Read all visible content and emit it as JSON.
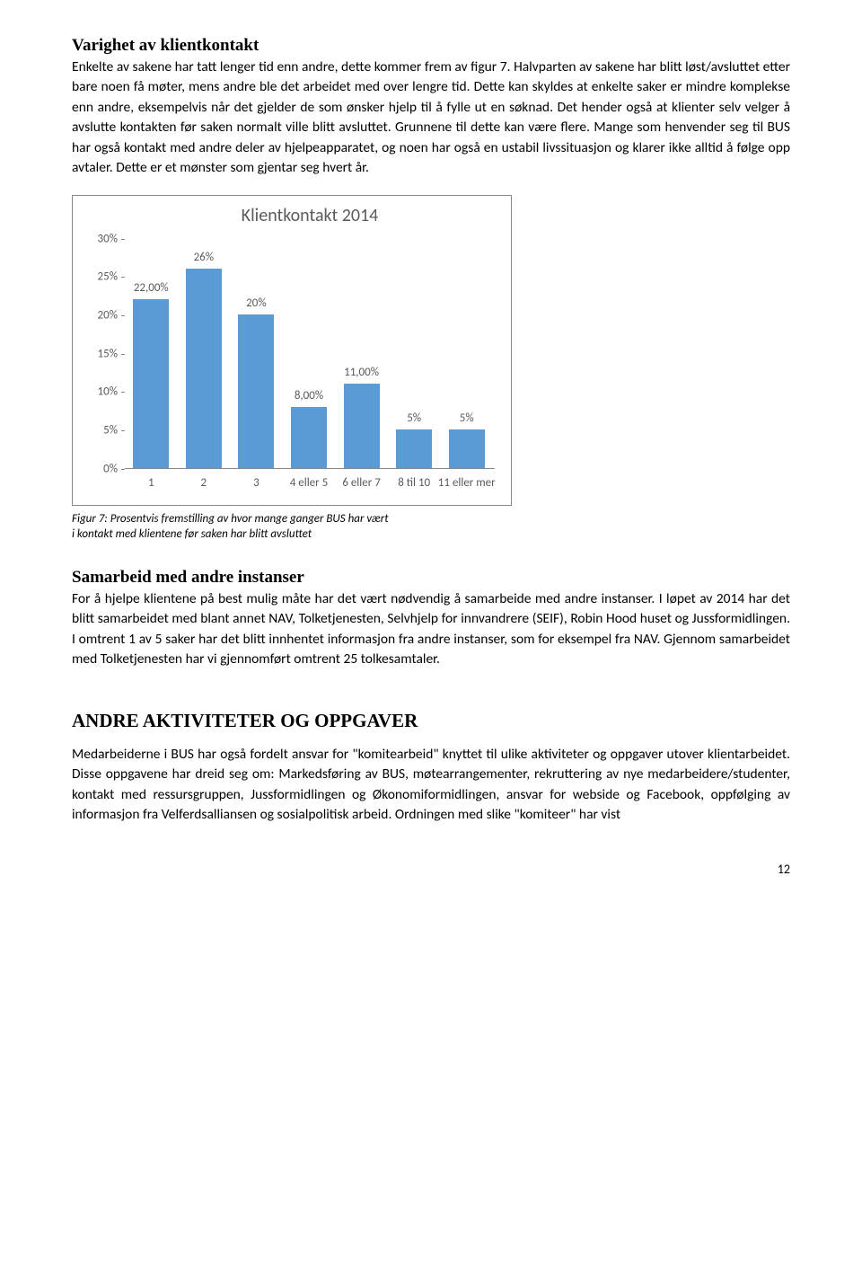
{
  "section1": {
    "title": "Varighet av klientkontakt",
    "paragraph": "Enkelte av sakene har tatt lenger tid enn andre, dette kommer frem av figur 7. Halvparten av sakene har blitt løst/avsluttet etter bare noen få møter, mens andre ble det arbeidet med over lengre tid. Dette kan skyldes at enkelte saker er mindre komplekse enn andre, eksempelvis når det gjelder de som ønsker hjelp til å fylle ut en søknad. Det hender også at klienter selv velger å avslutte kontakten før saken normalt ville blitt avsluttet. Grunnene til dette kan være flere. Mange som henvender seg til BUS har også kontakt med andre deler av hjelpeapparatet, og noen har også en ustabil livssituasjon og klarer ikke alltid å følge opp avtaler. Dette er et mønster som gjentar seg hvert år."
  },
  "chart": {
    "title": "Klientkontakt 2014",
    "categories": [
      "1",
      "2",
      "3",
      "4 eller 5",
      "6 eller 7",
      "8 til 10",
      "11 eller mer"
    ],
    "values": [
      22.0,
      26.0,
      20.0,
      8.0,
      11.0,
      5.0,
      5.0
    ],
    "value_labels": [
      "22,00%",
      "26%",
      "20%",
      "8,00%",
      "11,00%",
      "5%",
      "5%"
    ],
    "bar_color": "#5b9bd5",
    "ymax": 30,
    "ytick_step": 5,
    "yticks": [
      "0%",
      "5%",
      "10%",
      "15%",
      "20%",
      "25%",
      "30%"
    ],
    "axis_color": "#888888",
    "text_color": "#5a5a5a"
  },
  "figure_caption": {
    "line1": "Figur 7: Prosentvis fremstilling av hvor mange ganger BUS har vært",
    "line2": "i kontakt med klientene før saken har blitt avsluttet"
  },
  "section2": {
    "title": "Samarbeid med andre instanser",
    "paragraph": "For å hjelpe klientene på best mulig måte har det vært nødvendig å samarbeide med andre instanser. I løpet av 2014 har det blitt samarbeidet med blant annet NAV, Tolketjenesten, Selvhjelp for innvandrere (SEIF), Robin Hood huset og Jussformidlingen. I omtrent 1 av 5 saker har det blitt innhentet informasjon fra andre instanser, som for eksempel fra NAV. Gjennom samarbeidet med Tolketjenesten har vi gjennomført omtrent 25 tolkesamtaler."
  },
  "section3": {
    "title": "ANDRE AKTIVITETER OG OPPGAVER",
    "paragraph": "Medarbeiderne i BUS har også fordelt ansvar for \"komitearbeid\" knyttet til ulike aktiviteter og oppgaver utover klientarbeidet. Disse oppgavene har dreid seg om: Markedsføring av BUS, møtearrangementer, rekruttering av nye medarbeidere/studenter, kontakt med ressursgruppen, Jussformidlingen og Økonomiformidlingen, ansvar for webside og Facebook, oppfølging av informasjon fra Velferdsalliansen og sosialpolitisk arbeid. Ordningen med slike \"komiteer\" har vist"
  },
  "page_number": "12"
}
